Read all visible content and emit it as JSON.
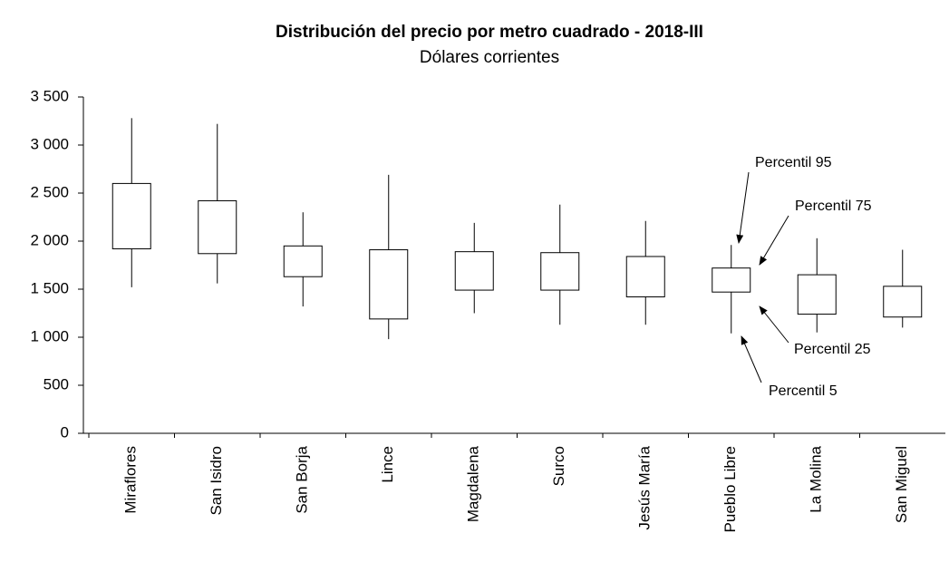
{
  "chart_data": {
    "type": "box",
    "title": "Distribución del precio por metro cuadrado - 2018-III",
    "subtitle": "Dólares corrientes",
    "categories": [
      "Miraflores",
      "San Isidro",
      "San Borja",
      "Lince",
      "Magdalena",
      "Surco",
      "Jesús María",
      "Pueblo Libre",
      "La Molina",
      "San Miguel"
    ],
    "p95": [
      3280,
      3220,
      2300,
      2690,
      2190,
      2380,
      2210,
      1960,
      2030,
      1910
    ],
    "p75": [
      2600,
      2420,
      1950,
      1910,
      1890,
      1880,
      1840,
      1720,
      1650,
      1530
    ],
    "p25": [
      1920,
      1870,
      1630,
      1190,
      1490,
      1490,
      1420,
      1470,
      1240,
      1210
    ],
    "p5": [
      1520,
      1560,
      1320,
      980,
      1250,
      1130,
      1130,
      1040,
      1050,
      1100
    ],
    "color": "#000000",
    "ylim": [
      0,
      3500
    ],
    "yticks": [
      0,
      500,
      {
        "value": 1000,
        "label": "1 000"
      },
      {
        "value": 1500,
        "label": "1 500"
      },
      {
        "value": 2000,
        "label": "2 000"
      },
      {
        "value": 2500,
        "label": "2 500"
      },
      {
        "value": 3000,
        "label": "3 000"
      },
      {
        "value": 3500,
        "label": "3 500"
      }
    ],
    "annotations": [
      "Percentil 95",
      "Percentil 75",
      "Percentil 25",
      "Percentil 5"
    ]
  }
}
